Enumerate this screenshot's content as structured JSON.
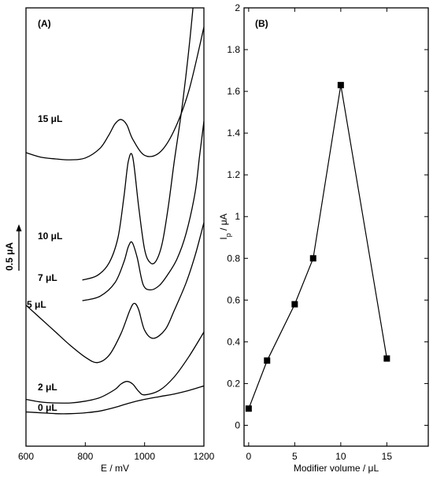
{
  "chart_data": [
    {
      "panel_label": "(A)",
      "type": "line",
      "xlabel": "E / mV",
      "ylabel": "",
      "xlim": [
        600,
        1200
      ],
      "x_ticks": [
        "600",
        "800",
        "1000",
        "1200"
      ],
      "scale_bar": {
        "label": "0.5 μA",
        "value_uA": 0.5
      },
      "series": [
        {
          "name": "15 μL",
          "x": [
            600,
            650,
            700,
            750,
            800,
            850,
            880,
            900,
            920,
            940,
            960,
            1000,
            1050,
            1100,
            1150,
            1200
          ],
          "y": [
            3.0,
            2.95,
            2.93,
            2.92,
            2.94,
            3.05,
            3.2,
            3.32,
            3.37,
            3.31,
            3.15,
            2.97,
            3.0,
            3.25,
            3.7,
            4.4
          ]
        },
        {
          "name": "10 μL",
          "x": [
            790,
            840,
            880,
            910,
            930,
            945,
            960,
            980,
            1000,
            1020,
            1040,
            1060,
            1080,
            1100,
            1130,
            1160,
            1185,
            1200
          ],
          "y": [
            1.58,
            1.63,
            1.77,
            2.05,
            2.5,
            2.9,
            2.95,
            2.4,
            1.92,
            1.77,
            1.8,
            2.0,
            2.4,
            2.9,
            3.6,
            4.5,
            5.5,
            6.2
          ]
        },
        {
          "name": "7 μL",
          "x": [
            790,
            850,
            900,
            930,
            945,
            958,
            975,
            995,
            1020,
            1050,
            1080,
            1110,
            1140,
            1170,
            1185,
            1200
          ],
          "y": [
            1.35,
            1.4,
            1.55,
            1.78,
            1.95,
            2.0,
            1.83,
            1.53,
            1.47,
            1.52,
            1.65,
            1.82,
            2.1,
            2.55,
            2.95,
            3.35
          ]
        },
        {
          "name": "5 μL",
          "x": [
            600,
            650,
            700,
            750,
            800,
            840,
            880,
            920,
            950,
            965,
            980,
            1000,
            1030,
            1070,
            1100,
            1140,
            1170,
            1200
          ],
          "y": [
            1.3,
            1.15,
            1.0,
            0.85,
            0.72,
            0.66,
            0.74,
            0.98,
            1.24,
            1.32,
            1.25,
            1.02,
            0.93,
            1.03,
            1.24,
            1.55,
            1.85,
            2.22
          ]
        },
        {
          "name": "2 μL",
          "x": [
            600,
            650,
            700,
            750,
            800,
            850,
            900,
            920,
            940,
            960,
            980,
            1000,
            1050,
            1100,
            1150,
            1200
          ],
          "y": [
            0.25,
            0.22,
            0.21,
            0.21,
            0.23,
            0.27,
            0.36,
            0.42,
            0.45,
            0.42,
            0.34,
            0.3,
            0.35,
            0.5,
            0.73,
            1.0
          ]
        },
        {
          "name": "0 μL",
          "x": [
            600,
            650,
            700,
            750,
            800,
            850,
            900,
            950,
            1000,
            1050,
            1100,
            1150,
            1200
          ],
          "y": [
            0.11,
            0.1,
            0.09,
            0.09,
            0.1,
            0.12,
            0.16,
            0.21,
            0.25,
            0.28,
            0.31,
            0.35,
            0.4
          ]
        }
      ]
    },
    {
      "panel_label": "(B)",
      "type": "line",
      "xlabel": "Modifier volume / μL",
      "ylabel": "I",
      "ylabel_sub": "p",
      "ylabel_unit": " / μA",
      "xlim": [
        -0.5,
        19.5
      ],
      "ylim": [
        -0.1,
        2.0
      ],
      "x_ticks": [
        "0",
        "5",
        "10",
        "15"
      ],
      "y_ticks": [
        "0",
        "0.2",
        "0.4",
        "0.6",
        "0.8",
        "1",
        "1.2",
        "1.4",
        "1.6",
        "1.8",
        "2"
      ],
      "series": [
        {
          "x": [
            0,
            2,
            5,
            7,
            10,
            15
          ],
          "y": [
            0.08,
            0.31,
            0.58,
            0.8,
            1.63,
            0.32
          ]
        }
      ]
    }
  ]
}
